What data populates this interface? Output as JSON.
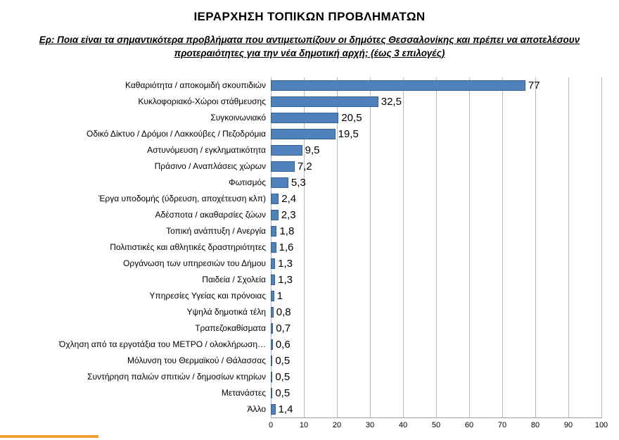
{
  "title": "ΙΕΡΑΡΧΗΣΗ ΤΟΠΙΚΩΝ ΠΡΟΒΛΗΜΑΤΩΝ",
  "subtitle_line1": "Ερ: Ποια είναι τα σημαντικότερα προβλήματα που αντιμετωπίζουν οι δημότες Θεσσαλονίκης και πρέπει να αποτελέσουν",
  "subtitle_line2": "προτεραιότητες για την νέα δημοτική αρχή; (έως 3 επιλογές)",
  "chart_data": {
    "type": "bar",
    "orientation": "horizontal",
    "title": "ΙΕΡΑΡΧΗΣΗ ΤΟΠΙΚΩΝ ΠΡΟΒΛΗΜΑΤΩΝ",
    "categories": [
      "Καθαριότητα / αποκομιδή σκουπιδιών",
      "Κυκλοφοριακό-Χώροι στάθμευσης",
      "Συγκοινωνιακό",
      "Οδικό Δίκτυο / Δρόμοι / Λακκούβες / Πεζοδρόμια",
      "Αστυνόμευση / εγκληματικότητα",
      "Πράσινο / Αναπλάσεις χώρων",
      "Φωτισμός",
      "Έργα υποδομής (ύδρευση, αποχέτευση κλπ)",
      "Αδέσποτα / ακαθαρσίες ζώων",
      "Τοπική ανάπτυξη / Ανεργία",
      "Πολιτιστικές και αθλητικές δραστηριότητες",
      "Οργάνωση των υπηρεσιών του Δήμου",
      "Παιδεία / Σχολεία",
      "Υπηρεσίες Υγείας και πρόνοιας",
      "Υψηλά δημοτικά τέλη",
      "Τραπεζοκαθίσματα",
      "Όχληση από τα εργοτάξια του ΜΕΤΡΟ / ολοκλήρωση…",
      "Μόλυνση του Θερμαϊκού / Θάλασσας",
      "Συντήρηση παλιών σπιτιών / δημοσίων κτηρίων",
      "Μετανάστες",
      "Άλλο"
    ],
    "values": [
      77,
      32.5,
      20.5,
      19.5,
      9.5,
      7.2,
      5.3,
      2.4,
      2.3,
      1.8,
      1.6,
      1.3,
      1.3,
      1,
      0.8,
      0.7,
      0.6,
      0.5,
      0.5,
      0.5,
      1.4
    ],
    "value_labels": [
      "77",
      "32,5",
      "20,5",
      "19,5",
      "9,5",
      "7,2",
      "5,3",
      "2,4",
      "2,3",
      "1,8",
      "1,6",
      "1,3",
      "1,3",
      "1",
      "0,8",
      "0,7",
      "0,6",
      "0,5",
      "0,5",
      "0,5",
      "1,4"
    ],
    "xlim": [
      0,
      100
    ],
    "xticks": [
      0,
      10,
      20,
      30,
      40,
      50,
      60,
      70,
      80,
      90,
      100
    ],
    "xlabel": "",
    "ylabel": "",
    "grid": true,
    "legend": false,
    "bar_color": "#4F81BD",
    "bar_border_color": "#36608F"
  },
  "colors": {
    "accent_line": "#F2A338"
  }
}
